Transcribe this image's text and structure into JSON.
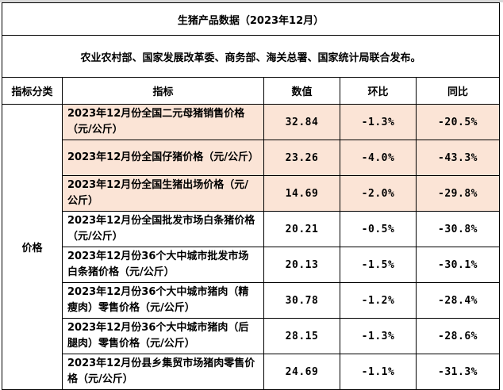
{
  "title": "生猪产品数据（2023年12月）",
  "source": "农业农村部、国家发展改革委、商务部、海关总署、国家统计局联合发布。",
  "headers": [
    "指标分类",
    "指标",
    "数值",
    "环比",
    "同比"
  ],
  "category": "价格",
  "highlight_color": "#fbe4d6",
  "rows": [
    {
      "name": "2023年12月份全国二元母猪销售价格（元/公斤）",
      "value": "32.84",
      "mom": "-1.3%",
      "yoy": "-20.5%"
    },
    {
      "name": "2023年12月份全国仔猪价格（元/公斤）",
      "value": "23.26",
      "mom": "-4.0%",
      "yoy": "-43.3%"
    },
    {
      "name": "2023年12月份全国生猪出场价格（元/公斤）",
      "value": "14.69",
      "mom": "-2.0%",
      "yoy": "-29.8%"
    },
    {
      "name": "2023年12月份全国批发市场白条猪价格（元/公斤）",
      "value": "20.21",
      "mom": "-0.5%",
      "yoy": "-30.8%"
    },
    {
      "name": "2023年12月份36个大中城市批发市场白条猪价格（元/公斤）",
      "value": "20.13",
      "mom": "-1.5%",
      "yoy": "-30.1%"
    },
    {
      "name": "2023年12月份36个大中城市猪肉（精瘦肉）零售价格（元/公斤）",
      "value": "30.78",
      "mom": "-1.2%",
      "yoy": "-28.4%"
    },
    {
      "name": "2023年12月份36个大中城市猪肉（后腿肉）零售价格（元/公斤）",
      "value": "28.15",
      "mom": "-1.3%",
      "yoy": "-28.6%"
    },
    {
      "name": "2023年12月份县乡集贸市场猪肉零售价格（元/公斤）",
      "value": "24.69",
      "mom": "-1.1%",
      "yoy": "-31.3%"
    }
  ]
}
